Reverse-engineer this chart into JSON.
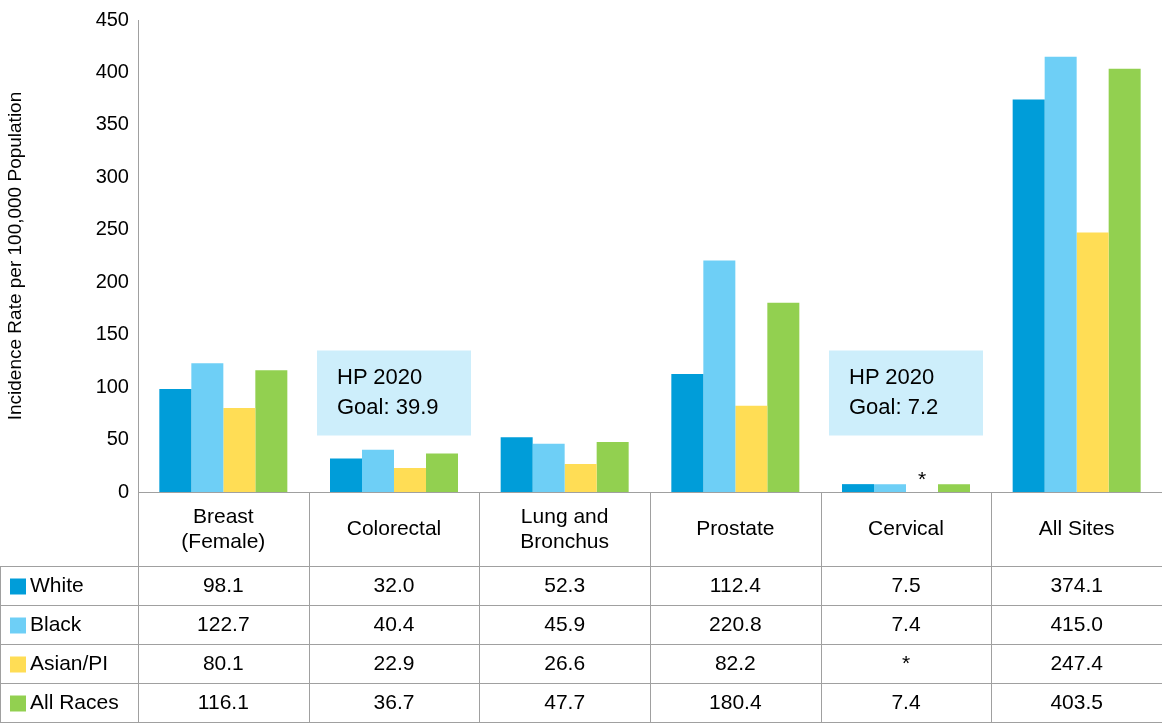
{
  "chart_data": {
    "type": "bar",
    "ylabel": "Incidence Rate per 100,000 Population",
    "categories": [
      "Breast (Female)",
      "Colorectal",
      "Lung and Bronchus",
      "Prostate",
      "Cervical",
      "All Sites"
    ],
    "series": [
      {
        "name": "White",
        "color": "#009dd9",
        "values": [
          98.1,
          32.0,
          52.3,
          112.4,
          7.5,
          374.1
        ],
        "value_labels": [
          "98.1",
          "32.0",
          "52.3",
          "112.4",
          "7.5",
          "374.1"
        ]
      },
      {
        "name": "Black",
        "color": "#6ecff6",
        "values": [
          122.7,
          40.4,
          45.9,
          220.8,
          7.4,
          415.0
        ],
        "value_labels": [
          "122.7",
          "40.4",
          "45.9",
          "220.8",
          "7.4",
          "415.0"
        ]
      },
      {
        "name": "Asian/PI",
        "color": "#ffdd55",
        "values": [
          80.1,
          22.9,
          26.6,
          82.2,
          null,
          247.4
        ],
        "value_labels": [
          "80.1",
          "22.9",
          "26.6",
          "82.2",
          "*",
          "247.4"
        ]
      },
      {
        "name": "All Races",
        "color": "#92d050",
        "values": [
          116.1,
          36.7,
          47.7,
          180.4,
          7.4,
          403.5
        ],
        "value_labels": [
          "116.1",
          "36.7",
          "47.7",
          "180.4",
          "7.4",
          "403.5"
        ]
      }
    ],
    "ylim": [
      0,
      450
    ],
    "yticks": [
      0,
      50,
      100,
      150,
      200,
      250,
      300,
      350,
      400,
      450
    ],
    "grid": false,
    "legend": "bottom",
    "annotations": [
      "HP 2020 Goal: 39.9",
      "HP 2020 Goal: 7.2"
    ]
  }
}
